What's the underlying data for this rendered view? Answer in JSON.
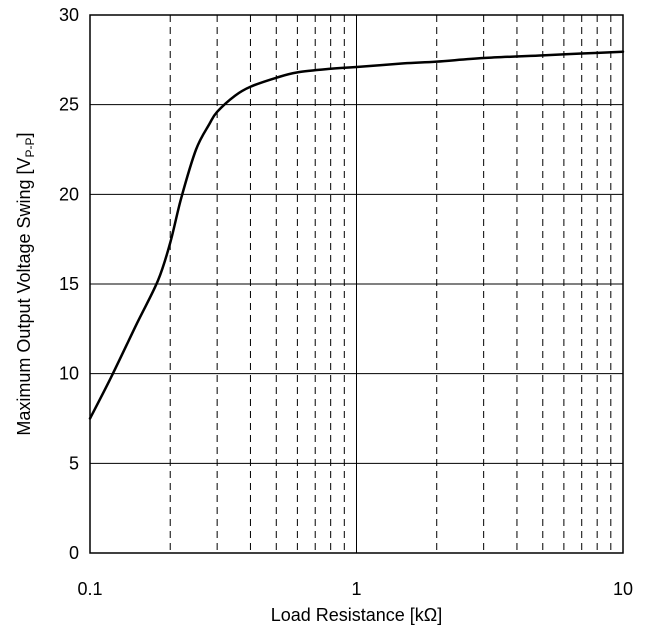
{
  "chart_data": {
    "type": "line",
    "xlabel": "Load Resistance [kΩ]",
    "ylabel": {
      "prefix": "Maximum Output Voltage Swing [V",
      "subscript": "P-P",
      "suffix": "]"
    },
    "x_scale": "log",
    "xlim": [
      0.1,
      10
    ],
    "ylim": [
      0,
      30
    ],
    "x_ticks": [
      0.1,
      1,
      10
    ],
    "x_tick_labels": [
      "0.1",
      "1",
      "10"
    ],
    "y_ticks": [
      0,
      5,
      10,
      15,
      20,
      25,
      30
    ],
    "y_tick_labels": [
      "0",
      "5",
      "10",
      "15",
      "20",
      "25",
      "30"
    ],
    "grid": {
      "major_y": "solid",
      "major_x": "solid",
      "minor_x": "dashed",
      "minor_x_values": [
        0.2,
        0.3,
        0.4,
        0.5,
        0.6,
        0.7,
        0.8,
        0.9,
        2,
        3,
        4,
        5,
        6,
        7,
        8,
        9
      ]
    },
    "series": [
      {
        "color": "#000000",
        "x": [
          0.1,
          0.12,
          0.15,
          0.18,
          0.2,
          0.22,
          0.25,
          0.28,
          0.3,
          0.35,
          0.4,
          0.5,
          0.6,
          0.8,
          1,
          1.5,
          2,
          3,
          5,
          7,
          10
        ],
        "y": [
          7.5,
          9.8,
          12.8,
          15.2,
          17.3,
          19.8,
          22.5,
          23.9,
          24.6,
          25.5,
          26.0,
          26.5,
          26.8,
          27.0,
          27.1,
          27.3,
          27.4,
          27.6,
          27.75,
          27.85,
          27.95
        ]
      }
    ]
  }
}
